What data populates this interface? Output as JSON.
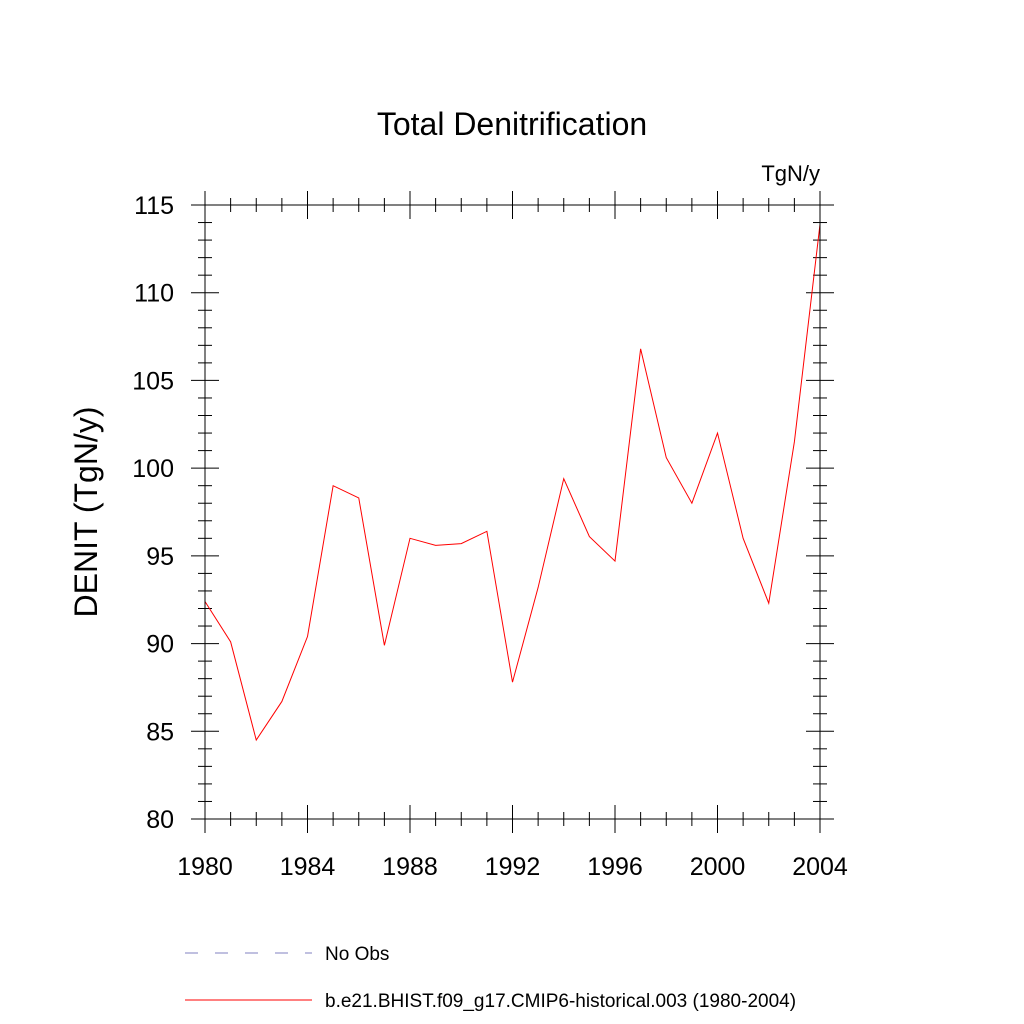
{
  "chart_data": {
    "type": "line",
    "title": "Total Denitrification",
    "units": "TgN/y",
    "ylabel": "DENIT  (TgN/y)",
    "xlabel": "",
    "xlim": [
      1980,
      2004
    ],
    "ylim": [
      80,
      115
    ],
    "x_ticks": [
      1980,
      1984,
      1988,
      1992,
      1996,
      2000,
      2004
    ],
    "y_ticks": [
      80,
      85,
      90,
      95,
      100,
      105,
      110,
      115
    ],
    "grid": false,
    "legend_position": "bottom",
    "x": [
      1980,
      1981,
      1982,
      1983,
      1984,
      1985,
      1986,
      1987,
      1988,
      1989,
      1990,
      1991,
      1992,
      1993,
      1994,
      1995,
      1996,
      1997,
      1998,
      1999,
      2000,
      2001,
      2002,
      2003,
      2004
    ],
    "series": [
      {
        "name": "b.e21.BHIST.f09_g17.CMIP6-historical.003 (1980-2004)",
        "color": "#ff0000",
        "style": "solid",
        "values": [
          92.4,
          90.1,
          84.5,
          86.7,
          90.4,
          99.0,
          98.3,
          89.9,
          96.0,
          95.6,
          95.7,
          96.4,
          87.8,
          93.2,
          99.4,
          96.1,
          94.7,
          106.8,
          100.6,
          98.0,
          102.0,
          96.0,
          92.3,
          101.5,
          113.9
        ]
      }
    ],
    "legend": [
      {
        "label": "No Obs",
        "color": "#8080c0",
        "style": "dashed"
      },
      {
        "label": "b.e21.BHIST.f09_g17.CMIP6-historical.003 (1980-2004)",
        "color": "#ff0000",
        "style": "solid"
      }
    ]
  }
}
